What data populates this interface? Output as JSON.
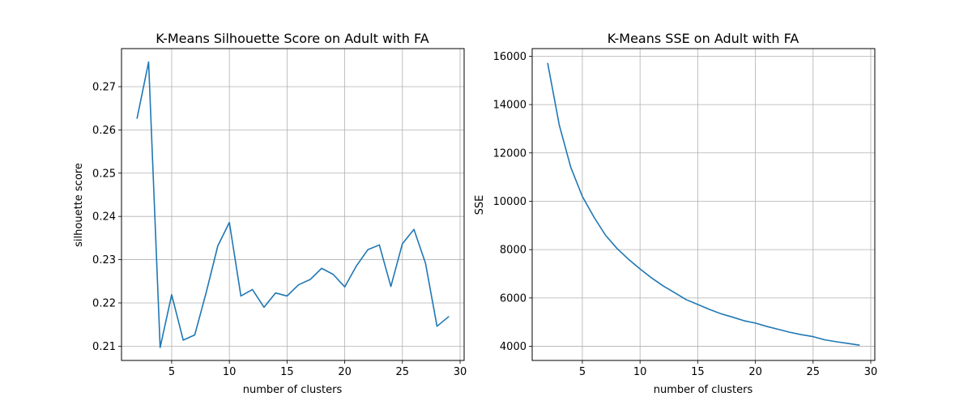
{
  "chart_data": [
    {
      "type": "line",
      "title": "K-Means Silhouette Score on Adult with FA",
      "xlabel": "number of clusters",
      "ylabel": "silhouette score",
      "xlim": [
        0.65,
        30.35
      ],
      "ylim": [
        0.2067,
        0.2788
      ],
      "xticks": [
        5,
        10,
        15,
        20,
        25,
        30
      ],
      "xtick_labels": [
        "5",
        "10",
        "15",
        "20",
        "25",
        "30"
      ],
      "yticks": [
        0.21,
        0.22,
        0.23,
        0.24,
        0.25,
        0.26,
        0.27
      ],
      "ytick_labels": [
        "0.21",
        "0.22",
        "0.23",
        "0.24",
        "0.25",
        "0.26",
        "0.27"
      ],
      "grid": true,
      "color": "#1f77b4",
      "x": [
        2,
        3,
        4,
        5,
        6,
        7,
        8,
        9,
        10,
        11,
        12,
        13,
        14,
        15,
        16,
        17,
        18,
        19,
        20,
        21,
        22,
        23,
        24,
        25,
        26,
        27,
        28,
        29
      ],
      "y": [
        0.2627,
        0.2757,
        0.2097,
        0.2219,
        0.2114,
        0.2126,
        0.2225,
        0.2332,
        0.2386,
        0.2216,
        0.2231,
        0.219,
        0.2223,
        0.2216,
        0.2242,
        0.2254,
        0.228,
        0.2266,
        0.2237,
        0.2285,
        0.2323,
        0.2334,
        0.2238,
        0.2337,
        0.237,
        0.2292,
        0.2146,
        0.2168
      ]
    },
    {
      "type": "line",
      "title": "K-Means SSE on Adult with FA",
      "xlabel": "number of clusters",
      "ylabel": "SSE",
      "xlim": [
        0.65,
        30.35
      ],
      "ylim": [
        3415,
        16315
      ],
      "xticks": [
        5,
        10,
        15,
        20,
        25,
        30
      ],
      "xtick_labels": [
        "5",
        "10",
        "15",
        "20",
        "25",
        "30"
      ],
      "yticks": [
        4000,
        6000,
        8000,
        10000,
        12000,
        14000,
        16000
      ],
      "ytick_labels": [
        "4000",
        "6000",
        "8000",
        "10000",
        "12000",
        "14000",
        "16000"
      ],
      "grid": true,
      "color": "#1f77b4",
      "x": [
        2,
        3,
        4,
        5,
        6,
        7,
        8,
        9,
        10,
        11,
        12,
        13,
        14,
        15,
        16,
        17,
        18,
        19,
        20,
        21,
        22,
        23,
        24,
        25,
        26,
        27,
        28,
        29
      ],
      "y": [
        15700,
        13150,
        11400,
        10200,
        9350,
        8600,
        8050,
        7600,
        7200,
        6830,
        6500,
        6220,
        5930,
        5730,
        5530,
        5350,
        5210,
        5060,
        4960,
        4820,
        4700,
        4580,
        4480,
        4400,
        4270,
        4190,
        4120,
        4050
      ]
    }
  ]
}
